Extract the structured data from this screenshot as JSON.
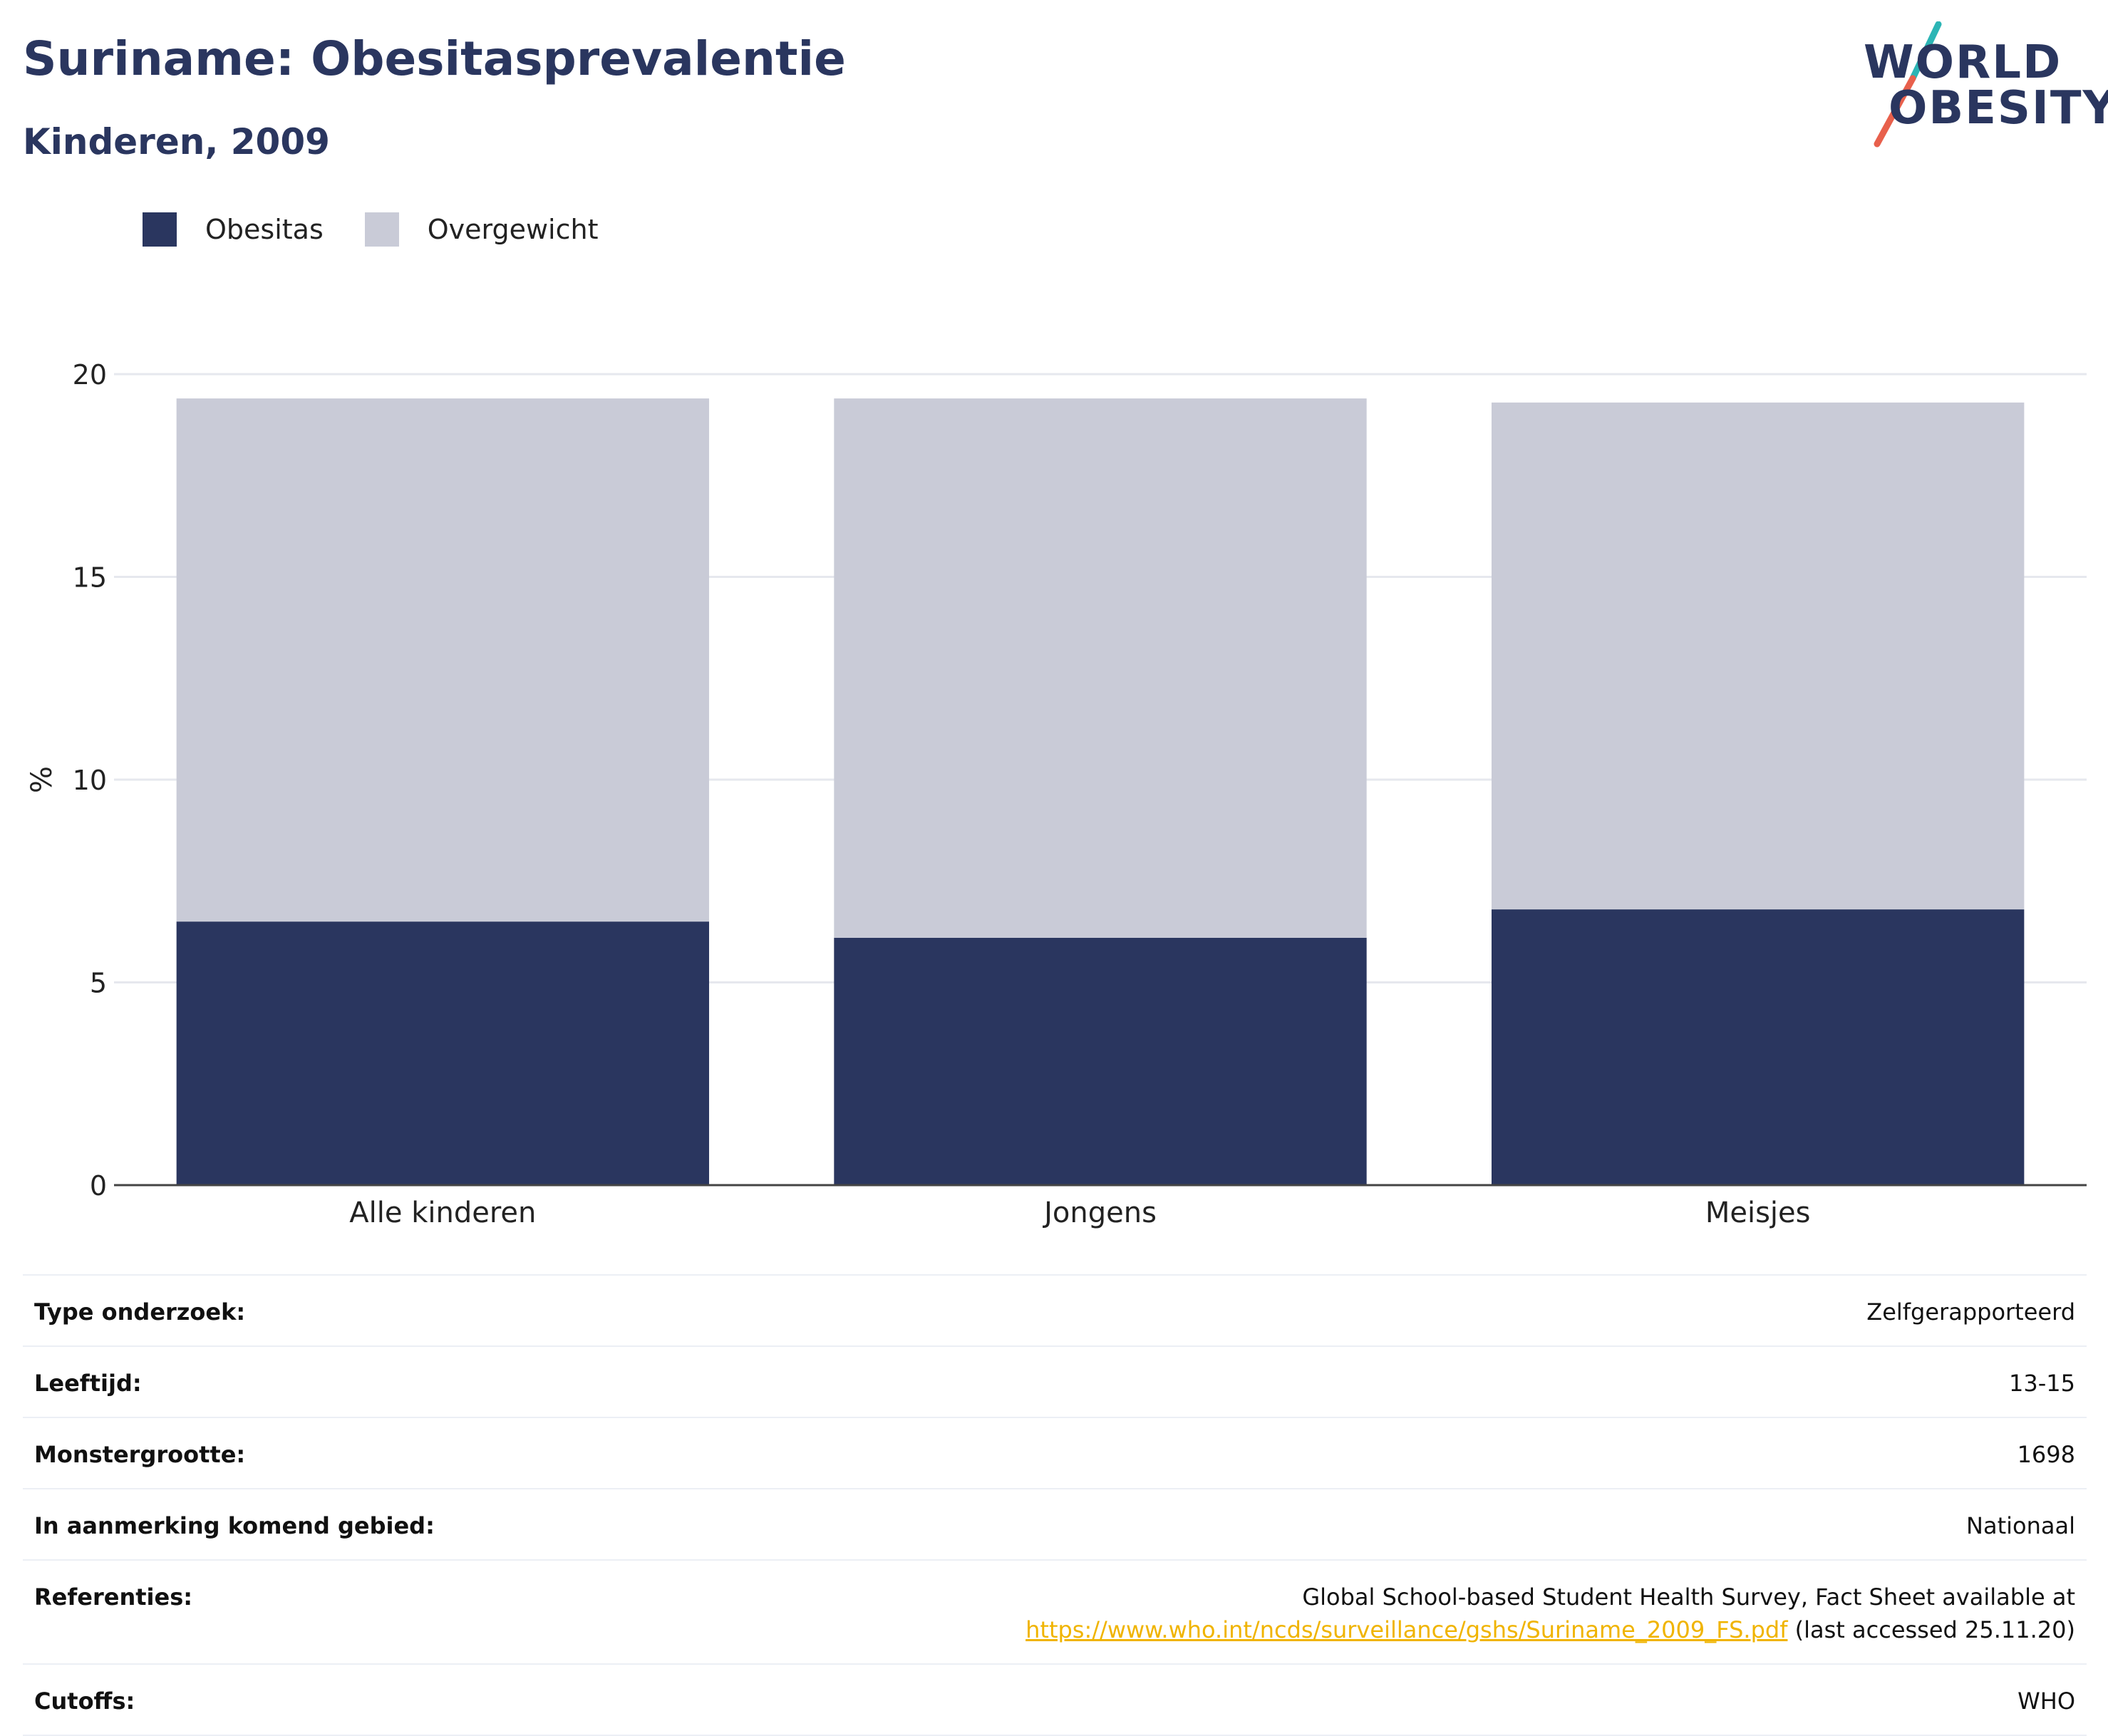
{
  "header": {
    "title": "Suriname: Obesitasprevalentie",
    "subtitle": "Kinderen, 2009"
  },
  "logo": {
    "line1": "WORLD",
    "line2": "OBESITY"
  },
  "legend": [
    {
      "label": "Obesitas",
      "color": "#2a365f"
    },
    {
      "label": "Overgewicht",
      "color": "#c9cbd7"
    }
  ],
  "chart_data": {
    "type": "bar",
    "stacked": true,
    "categories": [
      "Alle kinderen",
      "Jongens",
      "Meisjes"
    ],
    "series": [
      {
        "name": "Obesitas",
        "values": [
          6.5,
          6.1,
          6.8
        ],
        "color": "#2a365f"
      },
      {
        "name": "Overgewicht",
        "values": [
          12.9,
          13.3,
          12.5
        ],
        "color": "#c9cbd7"
      }
    ],
    "ylabel": "%",
    "ylim": [
      0,
      20
    ],
    "yticks": [
      0,
      5,
      10,
      15,
      20
    ],
    "grid": true,
    "legend_position": "top-left"
  },
  "info": [
    {
      "key": "Type onderzoek:",
      "value": "Zelfgerapporteerd"
    },
    {
      "key": "Leeftijd:",
      "value": "13-15"
    },
    {
      "key": "Monstergrootte:",
      "value": "1698"
    },
    {
      "key": "In aanmerking komend gebied:",
      "value": "Nationaal"
    },
    {
      "key": "Referenties:",
      "value_line1": "Global School-based Student Health Survey, Fact Sheet available at",
      "link": "https://www.who.int/ncds/surveillance/gshs/Suriname_2009_FS.pdf",
      "value_suffix": " (last accessed 25.11.20)"
    },
    {
      "key": "Cutoffs:",
      "value": "WHO"
    }
  ]
}
